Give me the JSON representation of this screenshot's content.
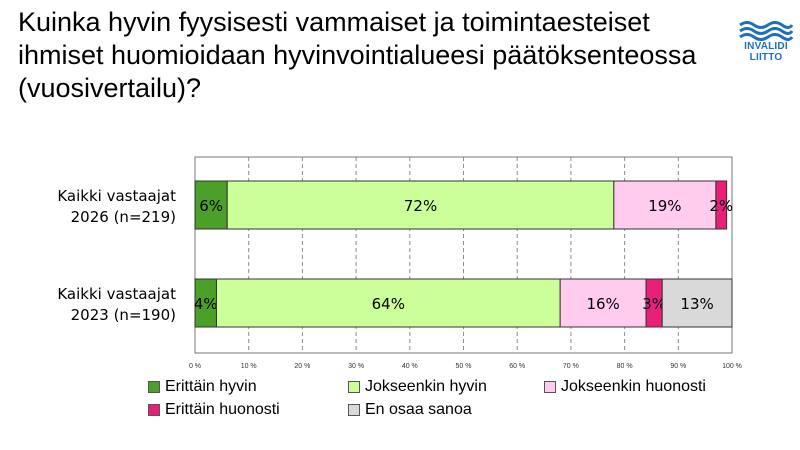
{
  "title": "Kuinka hyvin fyysisesti vammaiset ja toimintaesteiset ihmiset huomioidaan hyvinvointialueesi päätöksenteossa (vuosivertailu)?",
  "logo": {
    "line1": "INVALIDI",
    "line2": "LIITTO",
    "icon": "waves-logo-icon",
    "color": "#1e6fc0"
  },
  "chart_data": {
    "type": "bar",
    "orientation": "horizontal",
    "stacked": true,
    "title": "Kuinka hyvin fyysisesti vammaiset ja toimintaesteiset ihmiset huomioidaan hyvinvointialueesi päätöksenteossa (vuosivertailu)?",
    "xlabel": "",
    "ylabel": "",
    "xlim": [
      0,
      100
    ],
    "x_ticks": [
      "0 %",
      "10 %",
      "20 %",
      "30 %",
      "40 %",
      "50 %",
      "60 %",
      "70 %",
      "80 %",
      "90 %",
      "100 %"
    ],
    "grid": "vertical-dashed",
    "legend_position": "bottom",
    "categories": [
      {
        "line1": "Kaikki vastaajat",
        "line2": "2026 (n=219)"
      },
      {
        "line1": "Kaikki vastaajat",
        "line2": "2023 (n=190)"
      }
    ],
    "series": [
      {
        "name": "Erittäin hyvin",
        "color": "#4aa028",
        "values": [
          6,
          4
        ],
        "labels": [
          "6%",
          "4%"
        ]
      },
      {
        "name": "Jokseenkin hyvin",
        "color": "#ccff99",
        "values": [
          72,
          64
        ],
        "labels": [
          "72%",
          "64%"
        ]
      },
      {
        "name": "Jokseenkin huonosti",
        "color": "#ffccee",
        "values": [
          19,
          16
        ],
        "labels": [
          "19%",
          "16%"
        ]
      },
      {
        "name": "Erittäin huonosti",
        "color": "#e8207a",
        "values": [
          2,
          3
        ],
        "labels": [
          "2%",
          "3%"
        ]
      },
      {
        "name": "En osaa sanoa",
        "color": "#d9d9d9",
        "values": [
          0,
          13
        ],
        "labels": [
          "",
          "13%"
        ]
      }
    ]
  }
}
